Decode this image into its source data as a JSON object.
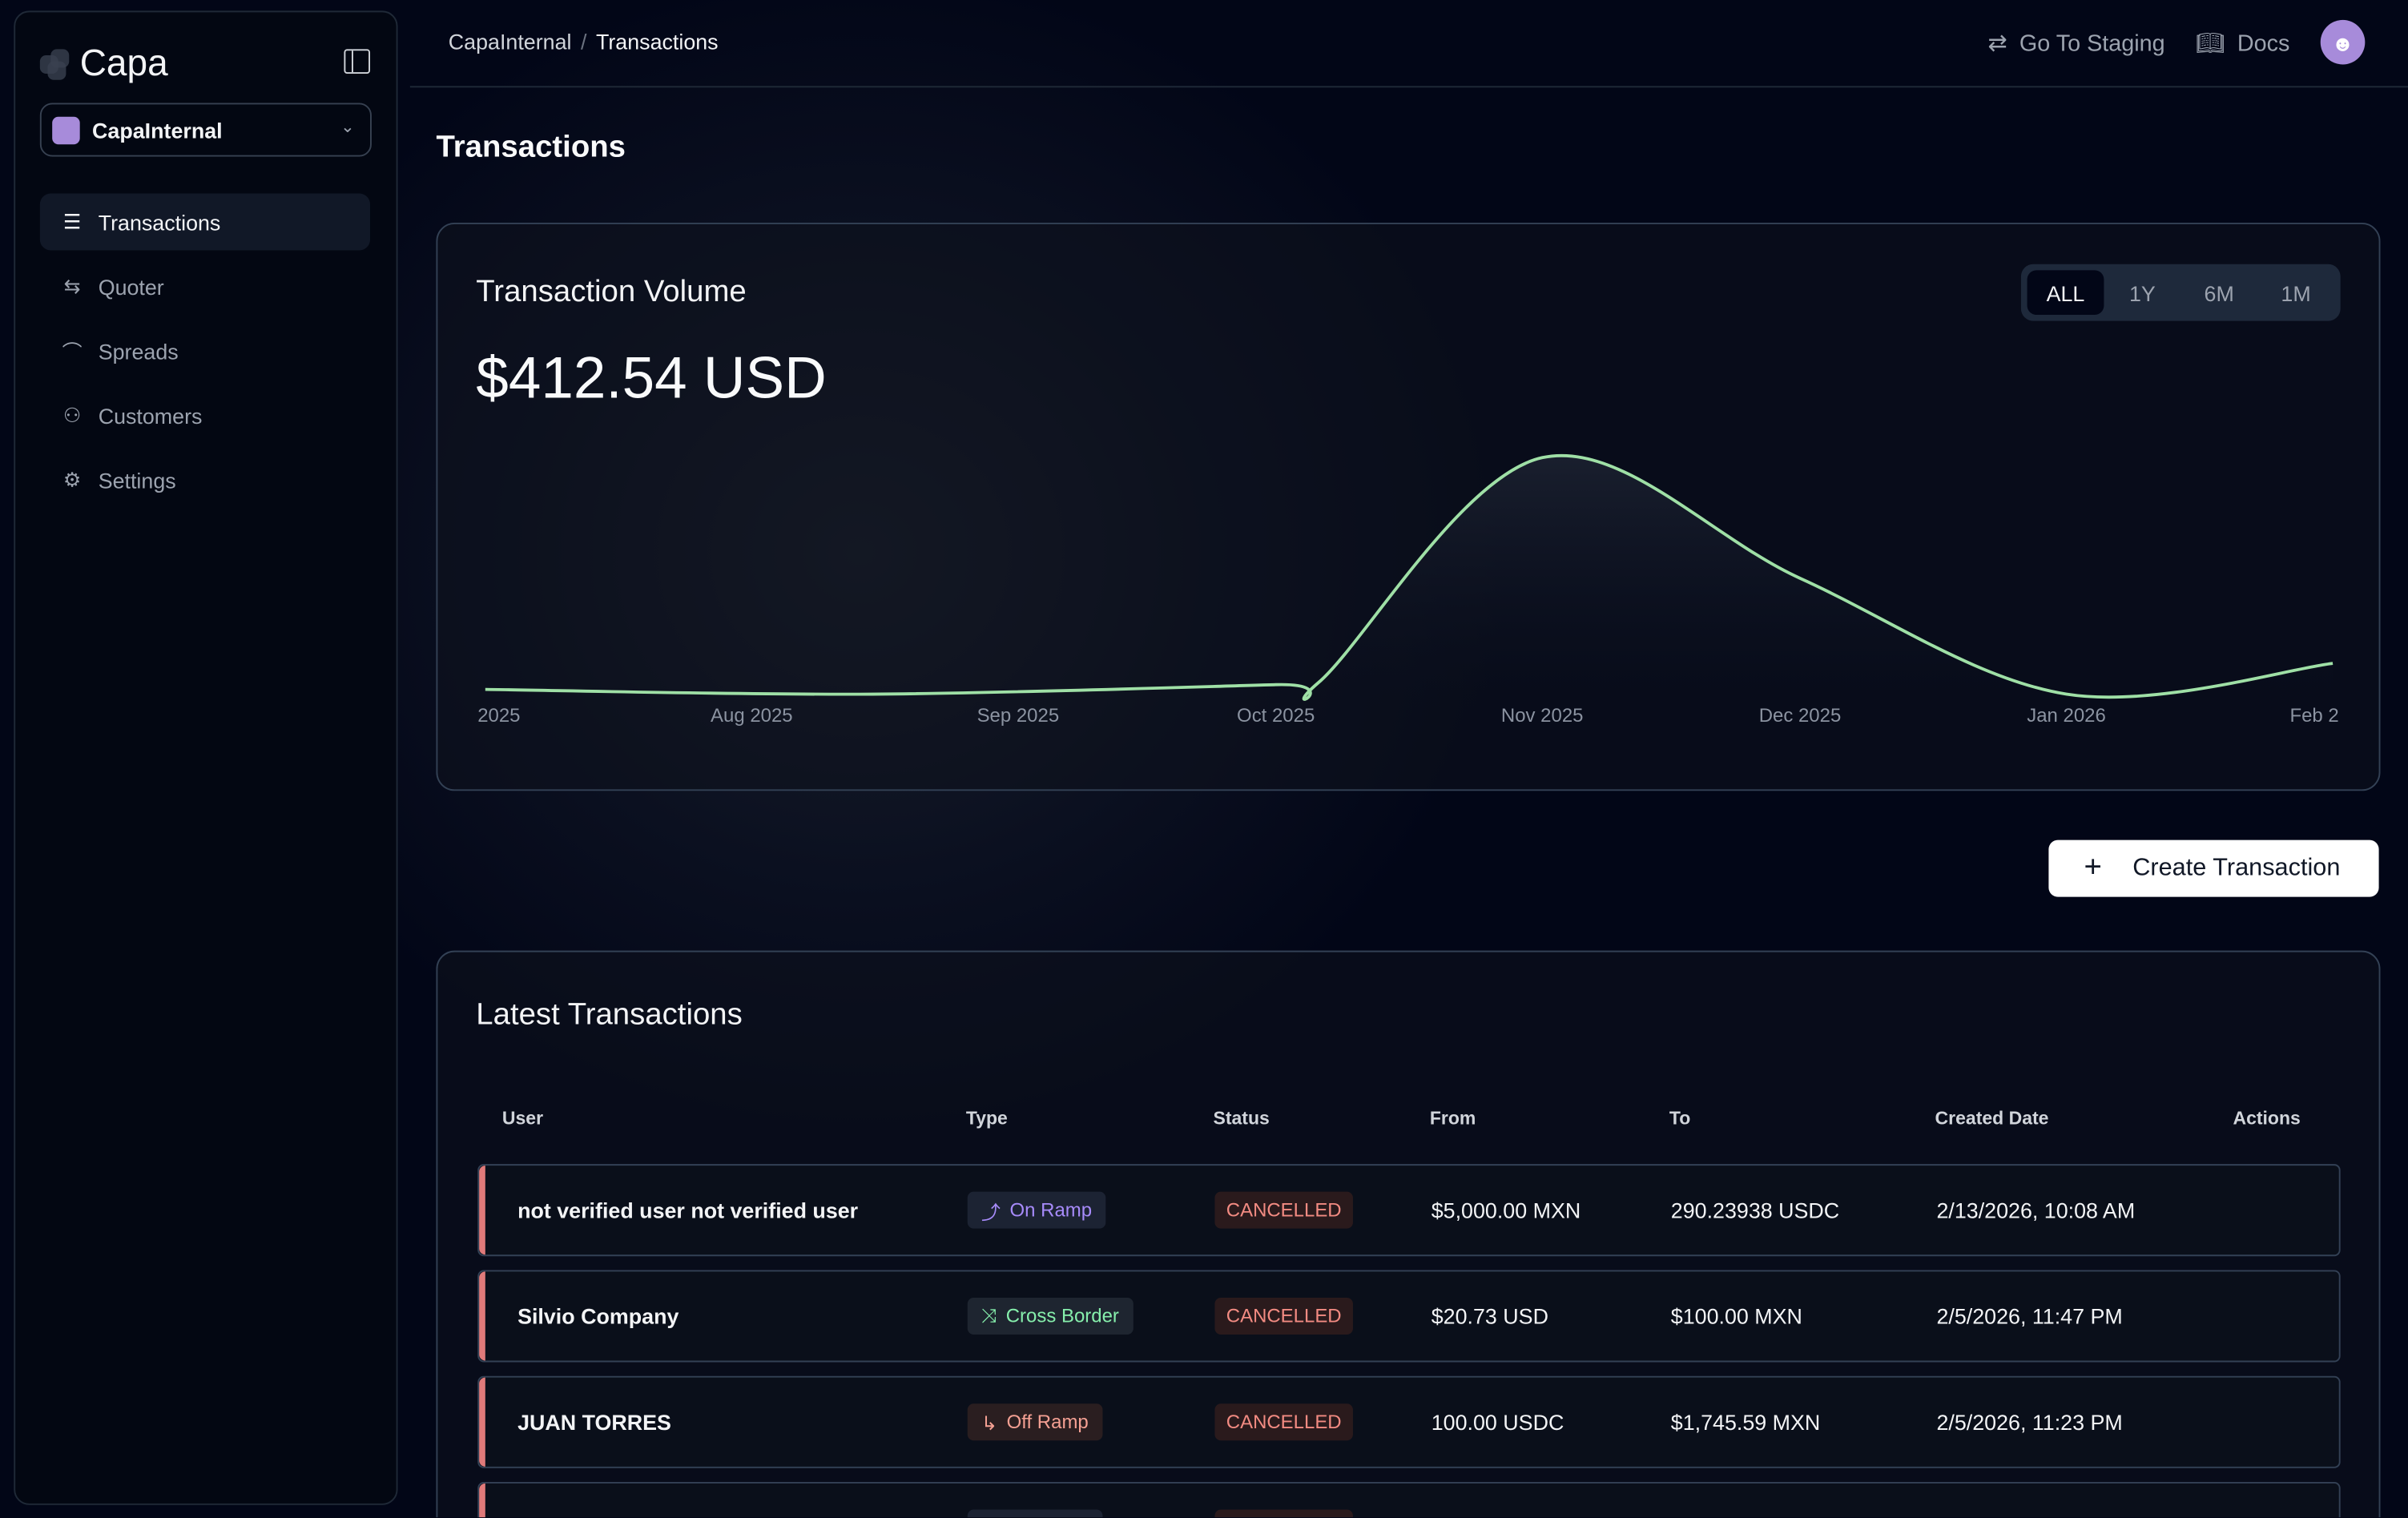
{
  "sidebar": {
    "brand": "Capa",
    "org": "CapaInternal",
    "items": [
      {
        "label": "Transactions",
        "icon": "list-icon",
        "glyph": "☰",
        "active": true
      },
      {
        "label": "Quoter",
        "icon": "exchange-icon",
        "glyph": "⇆",
        "active": false
      },
      {
        "label": "Spreads",
        "icon": "chart-line-icon",
        "glyph": "⌒",
        "active": false
      },
      {
        "label": "Customers",
        "icon": "user-plus-icon",
        "glyph": "⚇",
        "active": false
      },
      {
        "label": "Settings",
        "icon": "gear-icon",
        "glyph": "⚙",
        "active": false
      }
    ]
  },
  "topbar": {
    "breadcrumb": [
      "CapaInternal",
      "Transactions"
    ],
    "staging": "Go To Staging",
    "docs": "Docs"
  },
  "page": {
    "title": "Transactions"
  },
  "volume": {
    "title": "Transaction Volume",
    "value": "$412.54 USD",
    "ranges": [
      "ALL",
      "1Y",
      "6M",
      "1M"
    ],
    "selected_range": "ALL"
  },
  "chart_data": {
    "type": "area",
    "title": "Transaction Volume",
    "xlabel": "",
    "ylabel": "",
    "x_tick_labels": [
      "2025",
      "Aug 2025",
      "Sep 2025",
      "Oct 2025",
      "Nov 2025",
      "Dec 2025",
      "Jan 2026",
      "Feb 2"
    ],
    "x_ticks": [
      "2025-07-01",
      "2025-08-01",
      "2025-09-01",
      "2025-10-01",
      "2025-11-01",
      "2025-12-01",
      "2026-01-01",
      "2026-02-01"
    ],
    "xlim": [
      "2025-07-01",
      "2026-02-01"
    ],
    "y_scale_note": "relative, no y-axis shown",
    "ylim": [
      0,
      100
    ],
    "grid": false,
    "line_color": "#9fe0a6",
    "points": [
      {
        "x": "2025-07-01",
        "y": 2
      },
      {
        "x": "2025-08-15",
        "y": 0
      },
      {
        "x": "2025-10-01",
        "y": 4
      },
      {
        "x": "2025-10-06",
        "y": 5
      },
      {
        "x": "2025-11-01",
        "y": 100
      },
      {
        "x": "2025-12-01",
        "y": 49
      },
      {
        "x": "2026-01-01",
        "y": 0
      },
      {
        "x": "2026-02-01",
        "y": 13
      }
    ]
  },
  "actions": {
    "create": "Create Transaction"
  },
  "latest": {
    "title": "Latest Transactions",
    "columns": [
      "User",
      "Type",
      "Status",
      "From",
      "To",
      "Created Date",
      "Actions"
    ],
    "rows": [
      {
        "user": "not verified user not verified user",
        "type": "On Ramp",
        "type_glyph": "⤴",
        "type_color": "#a78bfa",
        "type_bg": "#1c2333",
        "status": "CANCELLED",
        "from": "$5,000.00 MXN",
        "to": "290.23938 USDC",
        "date": "2/13/2026, 10:08 AM"
      },
      {
        "user": "Silvio Company",
        "type": "Cross Border",
        "type_glyph": "⤨",
        "type_color": "#86efac",
        "type_bg": "#1e2530",
        "status": "CANCELLED",
        "from": "$20.73 USD",
        "to": "$100.00 MXN",
        "date": "2/5/2026, 11:47 PM"
      },
      {
        "user": "JUAN TORRES",
        "type": "Off Ramp",
        "type_glyph": "↳",
        "type_color": "#f4a093",
        "type_bg": "#2a1e20",
        "status": "CANCELLED",
        "from": "100.00 USDC",
        "to": "$1,745.59 MXN",
        "date": "2/5/2026, 11:23 PM"
      }
    ]
  }
}
